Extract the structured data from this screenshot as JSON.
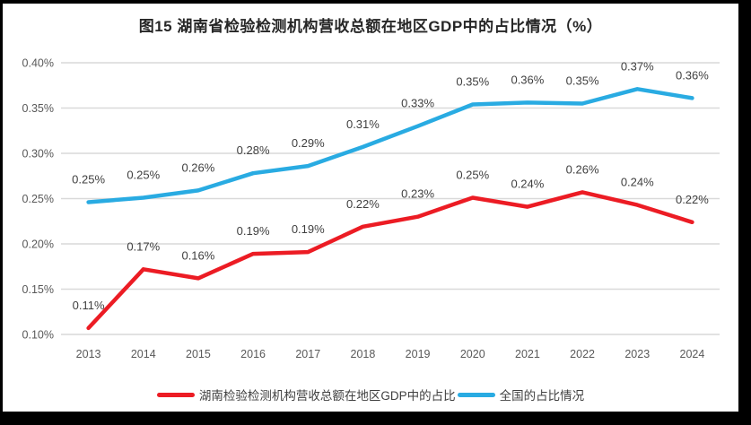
{
  "chart_data": {
    "type": "line",
    "title": "图15 湖南省检验检测机构营收总额在地区GDP中的占比情况（%）",
    "categories": [
      "2013",
      "2014",
      "2015",
      "2016",
      "2017",
      "2018",
      "2019",
      "2020",
      "2021",
      "2022",
      "2023",
      "2024"
    ],
    "series": [
      {
        "name": "湖南检验检测机构营收总额在地区GDP中的占比",
        "color": "#ec1c24",
        "values": [
          0.107,
          0.172,
          0.162,
          0.189,
          0.191,
          0.219,
          0.23,
          0.251,
          0.241,
          0.257,
          0.243,
          0.224
        ],
        "labels": [
          "0.11%",
          "0.17%",
          "0.16%",
          "0.19%",
          "0.19%",
          "0.22%",
          "0.23%",
          "0.25%",
          "0.24%",
          "0.26%",
          "0.24%",
          "0.22%"
        ]
      },
      {
        "name": "全国的占比情况",
        "color": "#29abe2",
        "values": [
          0.246,
          0.251,
          0.259,
          0.278,
          0.286,
          0.307,
          0.33,
          0.354,
          0.356,
          0.355,
          0.371,
          0.361
        ],
        "labels": [
          "0.25%",
          "0.25%",
          "0.26%",
          "0.28%",
          "0.29%",
          "0.31%",
          "0.33%",
          "0.35%",
          "0.36%",
          "0.35%",
          "0.37%",
          "0.36%"
        ]
      }
    ],
    "y_axis": {
      "min": 0.1,
      "max": 0.4,
      "step": 0.05,
      "tick_labels": [
        "0.10%",
        "0.15%",
        "0.20%",
        "0.25%",
        "0.30%",
        "0.35%",
        "0.40%"
      ]
    },
    "xlabel": "",
    "ylabel": "",
    "grid": true,
    "legend_position": "bottom"
  }
}
